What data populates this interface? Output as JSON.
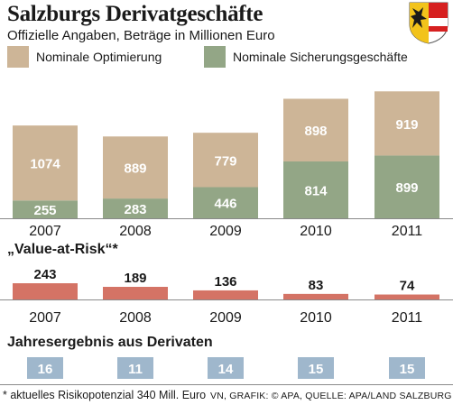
{
  "title": "Salzburgs Derivatgeschäfte",
  "subtitle": "Offizielle Angaben, Beträge in Millionen Euro",
  "crest": "salzburg-coat-of-arms",
  "colors": {
    "optimierung": "#cdb597",
    "sicherung": "#93a686",
    "var_bar": "#d47365",
    "ergebnis_box": "#9fb7cc",
    "label_light": "#ffffff",
    "text": "#1a1a1a"
  },
  "chart_data": [
    {
      "type": "bar",
      "stacked": true,
      "categories": [
        "2007",
        "2008",
        "2009",
        "2010",
        "2011"
      ],
      "series": [
        {
          "name": "Nominale Sicherungsgeschäfte",
          "values": [
            255,
            283,
            446,
            814,
            899
          ]
        },
        {
          "name": "Nominale Optimierung",
          "values": [
            1074,
            889,
            779,
            898,
            919
          ]
        }
      ],
      "legend": "top"
    },
    {
      "type": "bar",
      "title": "„Value-at-Risk“*",
      "categories": [
        "2007",
        "2008",
        "2009",
        "2010",
        "2011"
      ],
      "values": [
        243,
        189,
        136,
        83,
        74
      ]
    },
    {
      "type": "table",
      "title": "Jahresergebnis aus Derivaten",
      "values": [
        16,
        11,
        14,
        15,
        15
      ]
    }
  ],
  "footnote": "* aktuelles Risikopotenzial 340 Mill. Euro",
  "source": "VN, GRAFIK: © APA, QUELLE: APA/LAND SALZBURG"
}
